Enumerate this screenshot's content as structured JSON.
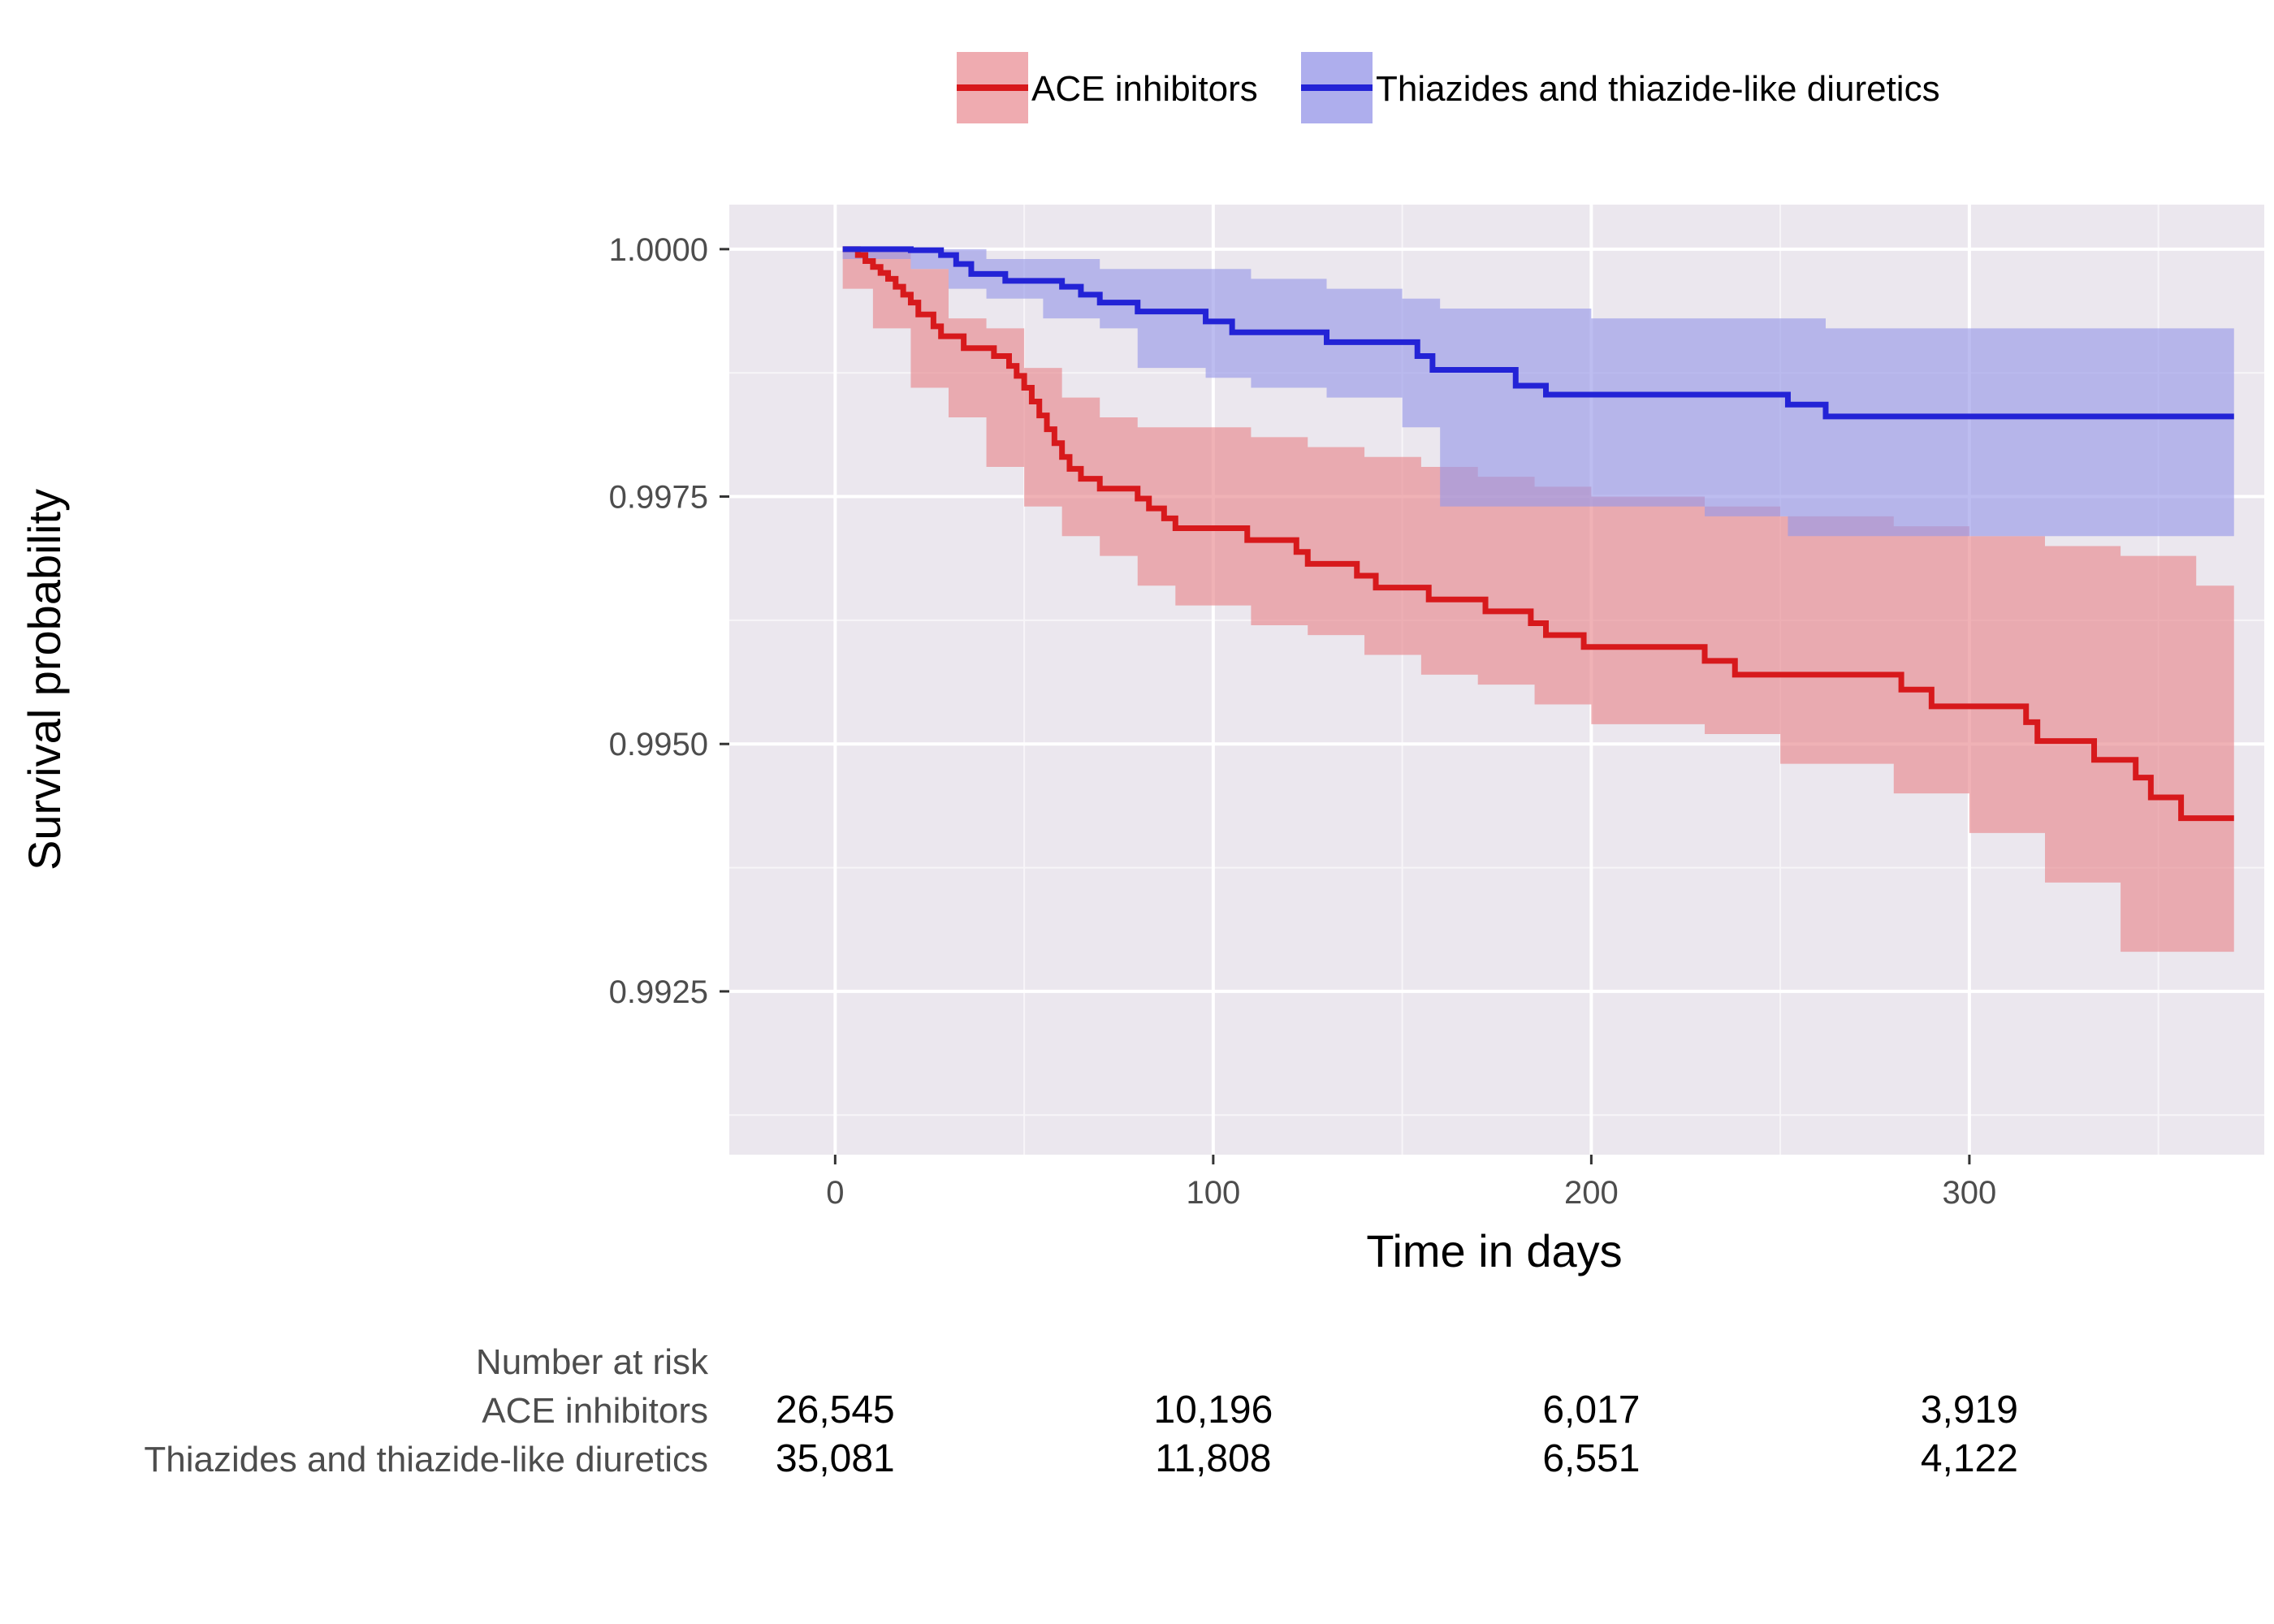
{
  "chart_data": {
    "type": "line",
    "subtype": "kaplan-meier step curves with confidence bands",
    "xlabel": "Time in days",
    "ylabel": "Survival probability",
    "xlim": [
      -28,
      378
    ],
    "ylim": [
      0.99085,
      1.00045
    ],
    "x_ticks": [
      0,
      100,
      200,
      300
    ],
    "x_tick_labels": [
      "0",
      "100",
      "200",
      "300"
    ],
    "y_ticks": [
      0.9925,
      0.995,
      0.9975,
      1.0
    ],
    "y_tick_labels": [
      "0.9925",
      "0.9950",
      "0.9975",
      "1.0000"
    ],
    "grid": true,
    "legend_position": "top",
    "series": [
      {
        "name": "ACE inhibitors",
        "line_color": "#d7191c",
        "band_color": "#e8888f",
        "steps": [
          [
            2,
            1.0
          ],
          [
            6,
            0.99994
          ],
          [
            8,
            0.99988
          ],
          [
            10,
            0.99982
          ],
          [
            12,
            0.99976
          ],
          [
            14,
            0.9997
          ],
          [
            16,
            0.99962
          ],
          [
            18,
            0.99954
          ],
          [
            20,
            0.99946
          ],
          [
            22,
            0.99934
          ],
          [
            26,
            0.99922
          ],
          [
            28,
            0.99912
          ],
          [
            34,
            0.999
          ],
          [
            42,
            0.99892
          ],
          [
            46,
            0.99882
          ],
          [
            48,
            0.99872
          ],
          [
            50,
            0.9986
          ],
          [
            52,
            0.99846
          ],
          [
            54,
            0.99832
          ],
          [
            56,
            0.99818
          ],
          [
            58,
            0.99804
          ],
          [
            60,
            0.9979
          ],
          [
            62,
            0.99778
          ],
          [
            65,
            0.99768
          ],
          [
            70,
            0.99758
          ],
          [
            80,
            0.99748
          ],
          [
            83,
            0.99738
          ],
          [
            87,
            0.99728
          ],
          [
            90,
            0.99718
          ],
          [
            109,
            0.99706
          ],
          [
            122,
            0.99694
          ],
          [
            125,
            0.99682
          ],
          [
            138,
            0.9967
          ],
          [
            143,
            0.99658
          ],
          [
            157,
            0.99646
          ],
          [
            172,
            0.99634
          ],
          [
            184,
            0.99622
          ],
          [
            188,
            0.9961
          ],
          [
            198,
            0.99598
          ],
          [
            230,
            0.99584
          ],
          [
            238,
            0.9957
          ],
          [
            282,
            0.99555
          ],
          [
            290,
            0.99538
          ],
          [
            315,
            0.99522
          ],
          [
            318,
            0.99503
          ],
          [
            333,
            0.99484
          ],
          [
            344,
            0.99466
          ],
          [
            348,
            0.99446
          ],
          [
            356,
            0.99425
          ],
          [
            370,
            0.99425
          ]
        ],
        "band": [
          [
            2,
            1.0,
            1.0
          ],
          [
            10,
            1.0,
            0.9996
          ],
          [
            20,
            0.9998,
            0.9992
          ],
          [
            30,
            0.9993,
            0.9986
          ],
          [
            40,
            0.9992,
            0.9983
          ],
          [
            50,
            0.9988,
            0.9978
          ],
          [
            60,
            0.9985,
            0.9974
          ],
          [
            70,
            0.9983,
            0.9971
          ],
          [
            80,
            0.9982,
            0.9969
          ],
          [
            90,
            0.9982,
            0.9966
          ],
          [
            110,
            0.9981,
            0.9964
          ],
          [
            125,
            0.998,
            0.9962
          ],
          [
            140,
            0.9979,
            0.9961
          ],
          [
            155,
            0.9978,
            0.9959
          ],
          [
            170,
            0.9977,
            0.9957
          ],
          [
            185,
            0.9976,
            0.9956
          ],
          [
            200,
            0.9975,
            0.9954
          ],
          [
            230,
            0.9974,
            0.9952
          ],
          [
            250,
            0.9973,
            0.9951
          ],
          [
            280,
            0.9972,
            0.9948
          ],
          [
            300,
            0.9971,
            0.9945
          ],
          [
            320,
            0.997,
            0.9941
          ],
          [
            340,
            0.9969,
            0.9936
          ],
          [
            360,
            0.9966,
            0.9929
          ],
          [
            370,
            0.9966,
            0.9929
          ]
        ]
      },
      {
        "name": "Thiazides and thiazide-like diuretics",
        "line_color": "#2323d6",
        "band_color": "#9a9ae8",
        "steps": [
          [
            2,
            1.0
          ],
          [
            20,
            0.99999
          ],
          [
            28,
            0.99994
          ],
          [
            32,
            0.99985
          ],
          [
            36,
            0.99975
          ],
          [
            45,
            0.99968
          ],
          [
            60,
            0.99962
          ],
          [
            65,
            0.99954
          ],
          [
            70,
            0.99946
          ],
          [
            80,
            0.99937
          ],
          [
            98,
            0.99927
          ],
          [
            105,
            0.99916
          ],
          [
            130,
            0.99906
          ],
          [
            154,
            0.99892
          ],
          [
            158,
            0.99878
          ],
          [
            180,
            0.99862
          ],
          [
            188,
            0.99853
          ],
          [
            210,
            0.99853
          ],
          [
            252,
            0.99843
          ],
          [
            262,
            0.99831
          ],
          [
            370,
            0.99831
          ]
        ],
        "band": [
          [
            2,
            1.0,
            1.0
          ],
          [
            20,
            1.0,
            0.9999
          ],
          [
            30,
            1.0,
            0.9998
          ],
          [
            40,
            0.9999,
            0.9996
          ],
          [
            55,
            0.9999,
            0.9995
          ],
          [
            70,
            0.9998,
            0.9993
          ],
          [
            80,
            0.9998,
            0.9992
          ],
          [
            98,
            0.9998,
            0.9988
          ],
          [
            110,
            0.9997,
            0.9987
          ],
          [
            130,
            0.9996,
            0.9986
          ],
          [
            150,
            0.9995,
            0.9985
          ],
          [
            160,
            0.9994,
            0.9982
          ],
          [
            180,
            0.9994,
            0.9974
          ],
          [
            200,
            0.9993,
            0.9974
          ],
          [
            230,
            0.9993,
            0.9974
          ],
          [
            252,
            0.9993,
            0.9973
          ],
          [
            262,
            0.9992,
            0.9971
          ],
          [
            300,
            0.9992,
            0.9971
          ],
          [
            370,
            0.9992,
            0.9971
          ]
        ]
      }
    ],
    "risk_table": {
      "title": "Number at risk",
      "times": [
        0,
        100,
        200,
        300
      ],
      "rows": [
        {
          "label": "ACE inhibitors",
          "values": [
            "26,545",
            "10,196",
            "6,017",
            "3,919"
          ]
        },
        {
          "label": "Thiazides and thiazide-like diuretics",
          "values": [
            "35,081",
            "11,808",
            "6,551",
            "4,122"
          ]
        }
      ]
    }
  }
}
